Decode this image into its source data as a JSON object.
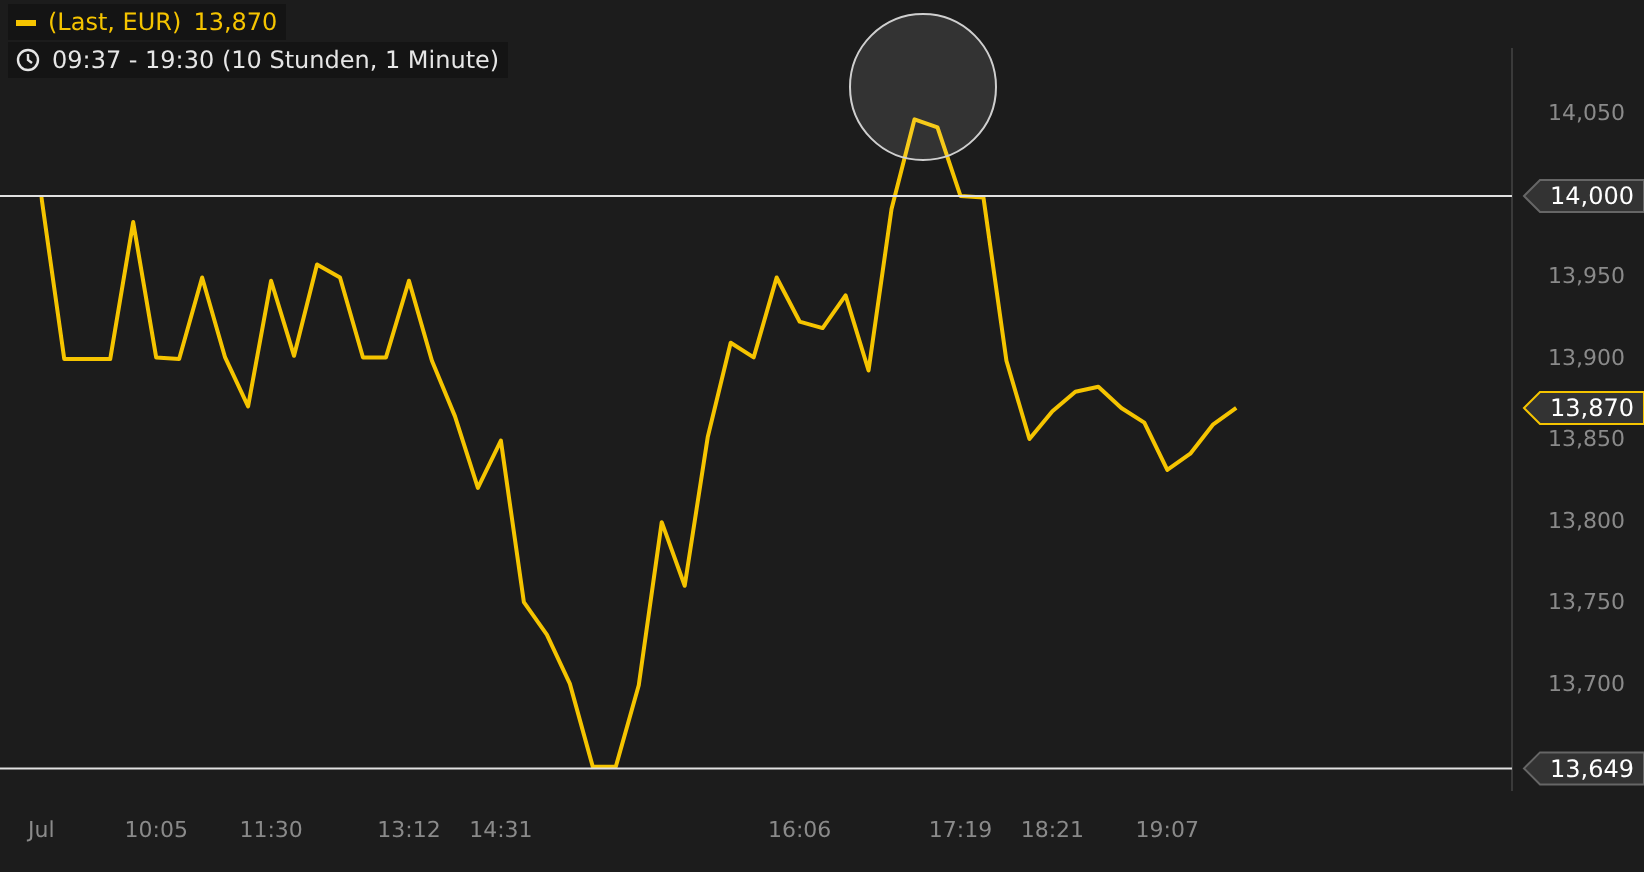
{
  "chart_data": {
    "type": "line",
    "subtitle": "09:37 - 19:30 (10 Stunden, 1 Minute)",
    "categories": [
      "Jul",
      null,
      null,
      null,
      null,
      "10:05",
      null,
      null,
      null,
      null,
      "11:30",
      null,
      null,
      null,
      null,
      null,
      "13:12",
      null,
      null,
      null,
      "14:31",
      null,
      null,
      null,
      null,
      null,
      null,
      null,
      null,
      null,
      null,
      null,
      null,
      "16:06",
      null,
      null,
      null,
      null,
      null,
      null,
      "17:19",
      null,
      null,
      null,
      "18:21",
      null,
      null,
      null,
      null,
      "19:07",
      null,
      null,
      null,
      null,
      null,
      null,
      null,
      null,
      null,
      null,
      null,
      null,
      null,
      null,
      null
    ],
    "series": [
      {
        "name": "(Last, EUR)",
        "color": "#f5c400",
        "values": [
          14000,
          13900,
          13900,
          13900,
          13984,
          13901,
          13900,
          13950,
          13901,
          13871,
          13948,
          13902,
          13958,
          13950,
          13901,
          13901,
          13948,
          13899,
          13865,
          13821,
          13850,
          13751,
          13731,
          13701,
          13650,
          13650,
          13700,
          13800,
          13761,
          13852,
          13910,
          13901,
          13950,
          13923,
          13919,
          13939,
          13893,
          13992,
          14047,
          14042,
          14000,
          13999,
          13899,
          13851,
          13868,
          13880,
          13883,
          13870,
          13861,
          13832,
          13842,
          13860,
          13870,
          null,
          null,
          null,
          null,
          null,
          null,
          null,
          null,
          null,
          null,
          null,
          null
        ]
      }
    ],
    "ylim": [
      13636,
      14090
    ],
    "yticks": [
      {
        "value": 13700,
        "label": "13,700"
      },
      {
        "value": 13750,
        "label": "13,750"
      },
      {
        "value": 13800,
        "label": "13,800"
      },
      {
        "value": 13850,
        "label": "13,850"
      },
      {
        "value": 13900,
        "label": "13,900"
      },
      {
        "value": 13950,
        "label": "13,950"
      },
      {
        "value": 14050,
        "label": "14,050"
      }
    ],
    "ref_lines": [
      {
        "axis": "y",
        "value": 14000,
        "label": "14,000",
        "color": "#e0e0e0"
      },
      {
        "axis": "y",
        "value": 13649,
        "label": "13,649",
        "color": "#e0e0e0"
      }
    ],
    "annotations": [
      "13,870",
      "13,870"
    ],
    "grid": false,
    "legend": "top left",
    "marker": "none",
    "line_style": "solid"
  }
}
